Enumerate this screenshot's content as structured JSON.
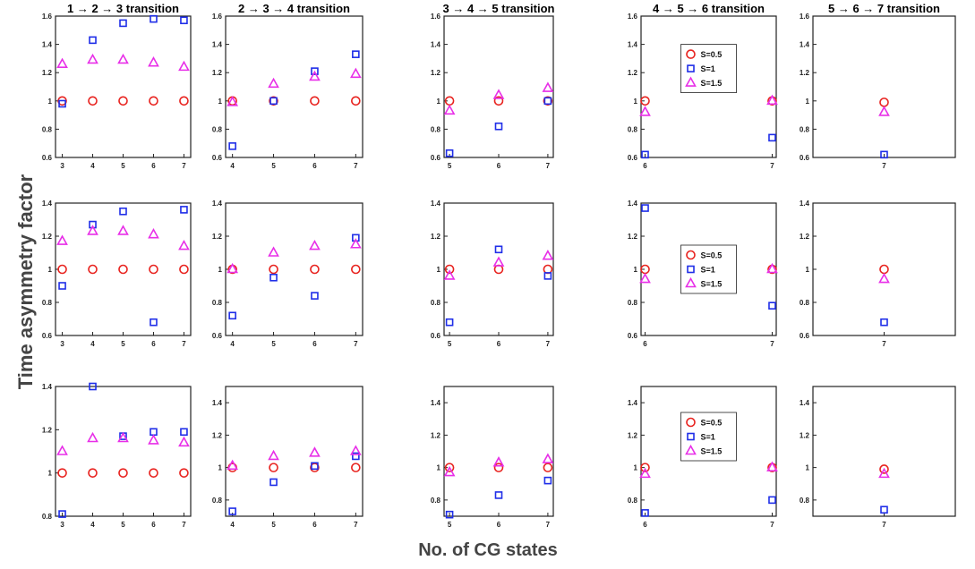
{
  "figure": {
    "ylabel": "Time asymmetry factor",
    "xlabel": "No. of CG states",
    "colors": {
      "S=0.5": "#e8231f",
      "S=1": "#1f2ee8",
      "S=1.5": "#e82fe8",
      "axes": "#222222"
    }
  },
  "chart_data": {
    "type": "scatter",
    "grid": false,
    "legend_labels": [
      "S=0.5",
      "S=1",
      "S=1.5"
    ],
    "marker_symbols": {
      "S=0.5": "circle",
      "S=1": "square",
      "S=1.5": "triangle"
    },
    "panels": [
      {
        "row": 0,
        "col": 0,
        "title": "1 → 2 → 3 transition",
        "x": [
          3,
          4,
          5,
          6,
          7
        ],
        "ylim": [
          0.6,
          1.6
        ],
        "yticks": [
          "0.6",
          "0.8",
          "1",
          "1.2",
          "1.4",
          "1.6"
        ],
        "series": [
          {
            "name": "S=0.5",
            "values": [
              1.0,
              1.0,
              1.0,
              1.0,
              1.0
            ]
          },
          {
            "name": "S=1",
            "values": [
              0.98,
              1.43,
              1.55,
              1.58,
              1.57
            ]
          },
          {
            "name": "S=1.5",
            "values": [
              1.26,
              1.29,
              1.29,
              1.27,
              1.24
            ]
          }
        ]
      },
      {
        "row": 0,
        "col": 1,
        "title": "2 → 3 → 4 transition",
        "x": [
          4,
          5,
          6,
          7
        ],
        "ylim": [
          0.6,
          1.6
        ],
        "yticks": [
          "0.6",
          "0.8",
          "1",
          "1.2",
          "1.4",
          "1.6"
        ],
        "series": [
          {
            "name": "S=0.5",
            "values": [
              1.0,
              1.0,
              1.0,
              1.0
            ]
          },
          {
            "name": "S=1",
            "values": [
              0.68,
              1.0,
              1.21,
              1.33
            ]
          },
          {
            "name": "S=1.5",
            "values": [
              0.99,
              1.12,
              1.17,
              1.19
            ]
          }
        ]
      },
      {
        "row": 0,
        "col": 2,
        "title": "3 → 4 → 5 transition",
        "x": [
          5,
          6,
          7
        ],
        "ylim": [
          0.6,
          1.6
        ],
        "yticks": [
          "0.6",
          "0.8",
          "1",
          "1.2",
          "1.4",
          "1.6"
        ],
        "series": [
          {
            "name": "S=0.5",
            "values": [
              1.0,
              1.0,
              1.0
            ]
          },
          {
            "name": "S=1",
            "values": [
              0.63,
              0.82,
              1.0
            ]
          },
          {
            "name": "S=1.5",
            "values": [
              0.93,
              1.04,
              1.09
            ]
          }
        ]
      },
      {
        "row": 0,
        "col": 3,
        "title": "4 → 5 → 6 transition",
        "x": [
          6,
          7
        ],
        "ylim": [
          0.6,
          1.6
        ],
        "yticks": [
          "0.6",
          "0.8",
          "1",
          "1.2",
          "1.4",
          "1.6"
        ],
        "legend": "top-center",
        "series": [
          {
            "name": "S=0.5",
            "values": [
              1.0,
              1.0
            ]
          },
          {
            "name": "S=1",
            "values": [
              0.62,
              0.74
            ]
          },
          {
            "name": "S=1.5",
            "values": [
              0.92,
              1.0
            ]
          }
        ]
      },
      {
        "row": 0,
        "col": 4,
        "title": "5 → 6 → 7 transition",
        "x": [
          7
        ],
        "ylim": [
          0.6,
          1.6
        ],
        "yticks": [
          "0.6",
          "0.8",
          "1",
          "1.2",
          "1.4",
          "1.6"
        ],
        "series": [
          {
            "name": "S=0.5",
            "values": [
              0.99
            ]
          },
          {
            "name": "S=1",
            "values": [
              0.62
            ]
          },
          {
            "name": "S=1.5",
            "values": [
              0.92
            ]
          }
        ]
      },
      {
        "row": 1,
        "col": 0,
        "x": [
          3,
          4,
          5,
          6,
          7
        ],
        "ylim": [
          0.6,
          1.4
        ],
        "yticks": [
          "0.6",
          "0.8",
          "1",
          "1.2",
          "1.4"
        ],
        "series": [
          {
            "name": "S=0.5",
            "values": [
              1.0,
              1.0,
              1.0,
              1.0,
              1.0
            ]
          },
          {
            "name": "S=1",
            "values": [
              0.9,
              1.27,
              1.35,
              0.68,
              1.36
            ]
          },
          {
            "name": "S=1.5",
            "values": [
              1.17,
              1.23,
              1.23,
              1.21,
              1.14
            ]
          }
        ]
      },
      {
        "row": 1,
        "col": 1,
        "x": [
          4,
          5,
          6,
          7
        ],
        "ylim": [
          0.6,
          1.4
        ],
        "yticks": [
          "0.6",
          "0.8",
          "1",
          "1.2",
          "1.4"
        ],
        "series": [
          {
            "name": "S=0.5",
            "values": [
              1.0,
              1.0,
              1.0,
              1.0
            ]
          },
          {
            "name": "S=1",
            "values": [
              0.72,
              0.95,
              0.84,
              1.19
            ]
          },
          {
            "name": "S=1.5",
            "values": [
              1.0,
              1.1,
              1.14,
              1.15
            ]
          }
        ]
      },
      {
        "row": 1,
        "col": 2,
        "x": [
          5,
          6,
          7
        ],
        "ylim": [
          0.6,
          1.4
        ],
        "yticks": [
          "0.6",
          "0.8",
          "1",
          "1.2",
          "1.4"
        ],
        "series": [
          {
            "name": "S=0.5",
            "values": [
              1.0,
              1.0,
              1.0
            ]
          },
          {
            "name": "S=1",
            "values": [
              0.68,
              1.12,
              0.96
            ]
          },
          {
            "name": "S=1.5",
            "values": [
              0.96,
              1.04,
              1.08
            ]
          }
        ]
      },
      {
        "row": 1,
        "col": 3,
        "x": [
          6,
          7
        ],
        "ylim": [
          0.6,
          1.4
        ],
        "yticks": [
          "0.6",
          "0.8",
          "1",
          "1.2",
          "1.4"
        ],
        "legend": "center",
        "series": [
          {
            "name": "S=0.5",
            "values": [
              1.0,
              1.0
            ]
          },
          {
            "name": "S=1",
            "values": [
              1.37,
              0.78
            ]
          },
          {
            "name": "S=1.5",
            "values": [
              0.94,
              1.0
            ]
          }
        ]
      },
      {
        "row": 1,
        "col": 4,
        "x": [
          7
        ],
        "ylim": [
          0.6,
          1.4
        ],
        "yticks": [
          "0.6",
          "0.8",
          "1",
          "1.2",
          "1.4"
        ],
        "series": [
          {
            "name": "S=0.5",
            "values": [
              1.0
            ]
          },
          {
            "name": "S=1",
            "values": [
              0.68
            ]
          },
          {
            "name": "S=1.5",
            "values": [
              0.94
            ]
          }
        ]
      },
      {
        "row": 2,
        "col": 0,
        "x": [
          3,
          4,
          5,
          6,
          7
        ],
        "ylim": [
          0.8,
          1.4
        ],
        "yticks": [
          "0.8",
          "1",
          "1.2",
          "1.4"
        ],
        "series": [
          {
            "name": "S=0.5",
            "values": [
              1.0,
              1.0,
              1.0,
              1.0,
              1.0
            ]
          },
          {
            "name": "S=1",
            "values": [
              0.81,
              1.4,
              1.17,
              1.19,
              1.19
            ]
          },
          {
            "name": "S=1.5",
            "values": [
              1.1,
              1.16,
              1.16,
              1.15,
              1.14
            ]
          }
        ]
      },
      {
        "row": 2,
        "col": 1,
        "x": [
          4,
          5,
          6,
          7
        ],
        "ylim": [
          0.7,
          1.5
        ],
        "yticks": [
          "0.8",
          "1",
          "1.2",
          "1.4"
        ],
        "series": [
          {
            "name": "S=0.5",
            "values": [
              1.0,
              1.0,
              1.0,
              1.0
            ]
          },
          {
            "name": "S=1",
            "values": [
              0.73,
              0.91,
              1.01,
              1.07
            ]
          },
          {
            "name": "S=1.5",
            "values": [
              1.01,
              1.07,
              1.09,
              1.1
            ]
          }
        ]
      },
      {
        "row": 2,
        "col": 2,
        "x": [
          5,
          6,
          7
        ],
        "ylim": [
          0.7,
          1.5
        ],
        "yticks": [
          "0.8",
          "1",
          "1.2",
          "1.4"
        ],
        "series": [
          {
            "name": "S=0.5",
            "values": [
              1.0,
              1.0,
              1.0
            ]
          },
          {
            "name": "S=1",
            "values": [
              0.71,
              0.83,
              0.92
            ]
          },
          {
            "name": "S=1.5",
            "values": [
              0.97,
              1.03,
              1.05
            ]
          }
        ]
      },
      {
        "row": 2,
        "col": 3,
        "x": [
          6,
          7
        ],
        "ylim": [
          0.7,
          1.5
        ],
        "yticks": [
          "0.8",
          "1",
          "1.2",
          "1.4"
        ],
        "legend": "top-center",
        "series": [
          {
            "name": "S=0.5",
            "values": [
              1.0,
              1.0
            ]
          },
          {
            "name": "S=1",
            "values": [
              0.72,
              0.8
            ]
          },
          {
            "name": "S=1.5",
            "values": [
              0.96,
              1.0
            ]
          }
        ]
      },
      {
        "row": 2,
        "col": 4,
        "x": [
          7
        ],
        "ylim": [
          0.7,
          1.5
        ],
        "yticks": [
          "0.8",
          "1",
          "1.2",
          "1.4"
        ],
        "series": [
          {
            "name": "S=0.5",
            "values": [
              0.99
            ]
          },
          {
            "name": "S=1",
            "values": [
              0.74
            ]
          },
          {
            "name": "S=1.5",
            "values": [
              0.96
            ]
          }
        ]
      }
    ]
  }
}
